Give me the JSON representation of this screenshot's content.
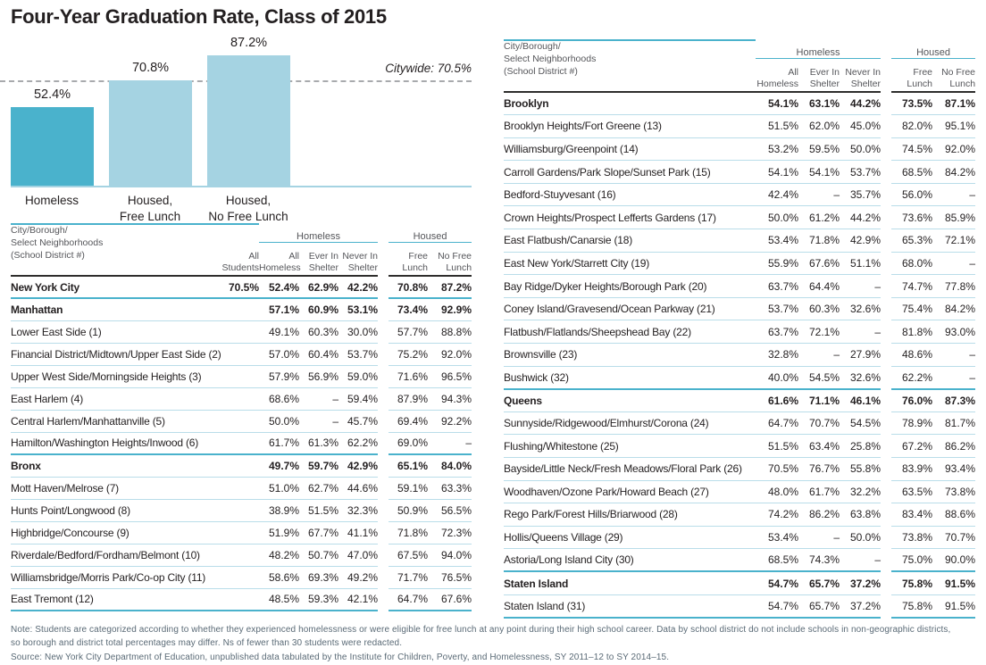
{
  "colors": {
    "accent": "#4ab2cc",
    "accent_light": "#a5d3e2",
    "row_rule": "#b9dde9",
    "header_rule": "#2e2d2c",
    "text": "#231f20",
    "muted_text": "#55565a",
    "note_text": "#5a6a76",
    "dashed_line": "#a8aaad"
  },
  "chart_data": [
    {
      "type": "bar",
      "title": "Four-Year Graduation Rate, Class of 2015",
      "categories": [
        "Homeless",
        "Housed,\nFree Lunch",
        "Housed,\nNo Free Lunch"
      ],
      "values": [
        52.4,
        70.8,
        87.2
      ],
      "value_labels": [
        "52.4%",
        "70.8%",
        "87.2%"
      ],
      "bar_colors": [
        "#4ab2cc",
        "#a5d3e2",
        "#a5d3e2"
      ],
      "reference_line": {
        "label": "Citywide: 70.5%",
        "value": 70.5
      },
      "xlabel": "",
      "ylabel": "",
      "ylim": [
        0,
        100
      ],
      "grid": false,
      "legend": "none"
    },
    {
      "type": "table",
      "label_header": "City/Borough/\nSelect Neighborhoods\n(School District #)",
      "groups": [
        "Homeless",
        "Housed"
      ],
      "col_headers": [
        "All\nStudents",
        "All\nHomeless",
        "Ever In\nShelter",
        "Never In\nShelter",
        "Free\nLunch",
        "No Free\nLunch"
      ],
      "rows": [
        {
          "label": "New York City",
          "bold": true,
          "values": [
            "70.5%",
            "52.4%",
            "62.9%",
            "42.2%",
            "70.8%",
            "87.2%"
          ]
        },
        {
          "label": "Manhattan",
          "bold": true,
          "section": true,
          "values": [
            "",
            "57.1%",
            "60.9%",
            "53.1%",
            "73.4%",
            "92.9%"
          ]
        },
        {
          "label": "Lower East Side (1)",
          "values": [
            "",
            "49.1%",
            "60.3%",
            "30.0%",
            "57.7%",
            "88.8%"
          ]
        },
        {
          "label": "Financial District/Midtown/Upper East Side (2)",
          "values": [
            "",
            "57.0%",
            "60.4%",
            "53.7%",
            "75.2%",
            "92.0%"
          ]
        },
        {
          "label": "Upper West Side/Morningside Heights (3)",
          "values": [
            "",
            "57.9%",
            "56.9%",
            "59.0%",
            "71.6%",
            "96.5%"
          ]
        },
        {
          "label": "East Harlem (4)",
          "values": [
            "",
            "68.6%",
            "–",
            "59.4%",
            "87.9%",
            "94.3%"
          ]
        },
        {
          "label": "Central Harlem/Manhattanville (5)",
          "values": [
            "",
            "50.0%",
            "–",
            "45.7%",
            "69.4%",
            "92.2%"
          ]
        },
        {
          "label": "Hamilton/Washington Heights/Inwood (6)",
          "values": [
            "",
            "61.7%",
            "61.3%",
            "62.2%",
            "69.0%",
            "–"
          ]
        },
        {
          "label": "Bronx",
          "bold": true,
          "section": true,
          "values": [
            "",
            "49.7%",
            "59.7%",
            "42.9%",
            "65.1%",
            "84.0%"
          ]
        },
        {
          "label": "Mott Haven/Melrose (7)",
          "values": [
            "",
            "51.0%",
            "62.7%",
            "44.6%",
            "59.1%",
            "63.3%"
          ]
        },
        {
          "label": "Hunts Point/Longwood (8)",
          "values": [
            "",
            "38.9%",
            "51.5%",
            "32.3%",
            "50.9%",
            "56.5%"
          ]
        },
        {
          "label": "Highbridge/Concourse (9)",
          "values": [
            "",
            "51.9%",
            "67.7%",
            "41.1%",
            "71.8%",
            "72.3%"
          ]
        },
        {
          "label": "Riverdale/Bedford/Fordham/Belmont (10)",
          "values": [
            "",
            "48.2%",
            "50.7%",
            "47.0%",
            "67.5%",
            "94.0%"
          ]
        },
        {
          "label": "Williamsbridge/Morris Park/Co-op City (11)",
          "values": [
            "",
            "58.6%",
            "69.3%",
            "49.2%",
            "71.7%",
            "76.5%"
          ]
        },
        {
          "label": "East Tremont (12)",
          "values": [
            "",
            "48.5%",
            "59.3%",
            "42.1%",
            "64.7%",
            "67.6%"
          ]
        }
      ]
    },
    {
      "type": "table",
      "label_header": "City/Borough/\nSelect Neighborhoods\n(School District #)",
      "groups": [
        "Homeless",
        "Housed"
      ],
      "col_headers": [
        "All\nHomeless",
        "Ever In\nShelter",
        "Never In\nShelter",
        "Free\nLunch",
        "No Free\nLunch"
      ],
      "rows": [
        {
          "label": "Brooklyn",
          "bold": true,
          "values": [
            "54.1%",
            "63.1%",
            "44.2%",
            "73.5%",
            "87.1%"
          ]
        },
        {
          "label": "Brooklyn Heights/Fort Greene (13)",
          "values": [
            "51.5%",
            "62.0%",
            "45.0%",
            "82.0%",
            "95.1%"
          ]
        },
        {
          "label": "Williamsburg/Greenpoint (14)",
          "values": [
            "53.2%",
            "59.5%",
            "50.0%",
            "74.5%",
            "92.0%"
          ]
        },
        {
          "label": "Carroll Gardens/Park Slope/Sunset Park (15)",
          "values": [
            "54.1%",
            "54.1%",
            "53.7%",
            "68.5%",
            "84.2%"
          ]
        },
        {
          "label": "Bedford-Stuyvesant (16)",
          "values": [
            "42.4%",
            "–",
            "35.7%",
            "56.0%",
            "–"
          ]
        },
        {
          "label": "Crown Heights/Prospect Lefferts Gardens (17)",
          "values": [
            "50.0%",
            "61.2%",
            "44.2%",
            "73.6%",
            "85.9%"
          ]
        },
        {
          "label": "East Flatbush/Canarsie (18)",
          "values": [
            "53.4%",
            "71.8%",
            "42.9%",
            "65.3%",
            "72.1%"
          ]
        },
        {
          "label": "East New York/Starrett City (19)",
          "values": [
            "55.9%",
            "67.6%",
            "51.1%",
            "68.0%",
            "–"
          ]
        },
        {
          "label": "Bay Ridge/Dyker Heights/Borough Park (20)",
          "values": [
            "63.7%",
            "64.4%",
            "–",
            "74.7%",
            "77.8%"
          ]
        },
        {
          "label": "Coney Island/Gravesend/Ocean Parkway (21)",
          "values": [
            "53.7%",
            "60.3%",
            "32.6%",
            "75.4%",
            "84.2%"
          ]
        },
        {
          "label": "Flatbush/Flatlands/Sheepshead Bay (22)",
          "values": [
            "63.7%",
            "72.1%",
            "–",
            "81.8%",
            "93.0%"
          ]
        },
        {
          "label": "Brownsville (23)",
          "values": [
            "32.8%",
            "–",
            "27.9%",
            "48.6%",
            "–"
          ]
        },
        {
          "label": "Bushwick (32)",
          "values": [
            "40.0%",
            "54.5%",
            "32.6%",
            "62.2%",
            "–"
          ]
        },
        {
          "label": "Queens",
          "bold": true,
          "section": true,
          "values": [
            "61.6%",
            "71.1%",
            "46.1%",
            "76.0%",
            "87.3%"
          ]
        },
        {
          "label": "Sunnyside/Ridgewood/Elmhurst/Corona (24)",
          "values": [
            "64.7%",
            "70.7%",
            "54.5%",
            "78.9%",
            "81.7%"
          ]
        },
        {
          "label": "Flushing/Whitestone (25)",
          "values": [
            "51.5%",
            "63.4%",
            "25.8%",
            "67.2%",
            "86.2%"
          ]
        },
        {
          "label": "Bayside/Little Neck/Fresh Meadows/Floral Park (26)",
          "values": [
            "70.5%",
            "76.7%",
            "55.8%",
            "83.9%",
            "93.4%"
          ]
        },
        {
          "label": "Woodhaven/Ozone Park/Howard Beach (27)",
          "values": [
            "48.0%",
            "61.7%",
            "32.2%",
            "63.5%",
            "73.8%"
          ]
        },
        {
          "label": "Rego Park/Forest Hills/Briarwood (28)",
          "values": [
            "74.2%",
            "86.2%",
            "63.8%",
            "83.4%",
            "88.6%"
          ]
        },
        {
          "label": "Hollis/Queens Village (29)",
          "values": [
            "53.4%",
            "–",
            "50.0%",
            "73.8%",
            "70.7%"
          ]
        },
        {
          "label": "Astoria/Long Island City (30)",
          "values": [
            "68.5%",
            "74.3%",
            "–",
            "75.0%",
            "90.0%"
          ]
        },
        {
          "label": "Staten Island",
          "bold": true,
          "section": true,
          "values": [
            "54.7%",
            "65.7%",
            "37.2%",
            "75.8%",
            "91.5%"
          ]
        },
        {
          "label": "Staten Island (31)",
          "values": [
            "54.7%",
            "65.7%",
            "37.2%",
            "75.8%",
            "91.5%"
          ]
        }
      ]
    }
  ],
  "notes": {
    "note": "Note: Students are categorized according to whether they experienced homelessness or were eligible for free lunch at any point during their high school career. Data by school district do not include schools in non-geographic districts,\nso borough and district total percentages may differ. Ns of fewer than 30 students were redacted.",
    "source": "Source: New York City Department of Education, unpublished data tabulated by the Institute for Children, Poverty, and Homelessness, SY 2011–12 to SY 2014–15."
  }
}
